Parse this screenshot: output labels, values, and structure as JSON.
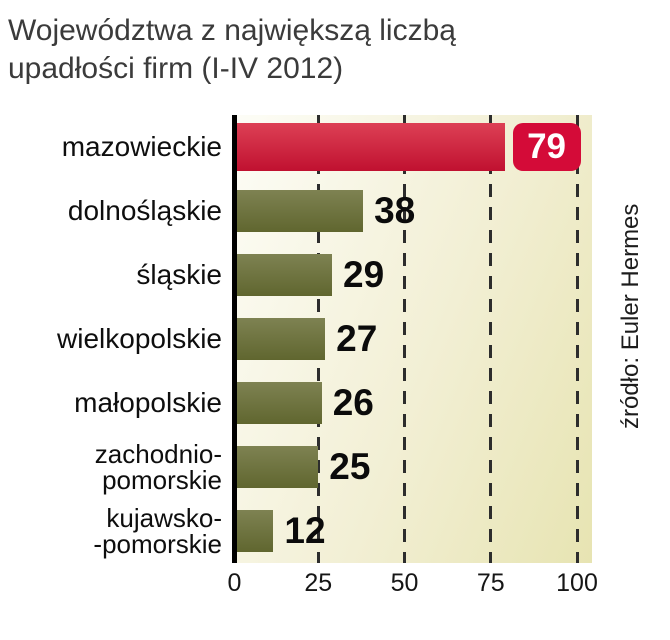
{
  "title": "Województwa z największą liczbą\nupadłości firm (I-IV 2012)",
  "source": "źródło: Euler Hermes",
  "chart_data": {
    "type": "bar",
    "orientation": "horizontal",
    "title": "Województwa z największą liczbą upadłości firm (I-IV 2012)",
    "categories": [
      "mazowieckie",
      "dolnośląskie",
      "śląskie",
      "wielkopolskie",
      "małopolskie",
      "zachodnio-\npomorskie",
      "kujawsko-\n-pomorskie"
    ],
    "values": [
      79,
      38,
      29,
      27,
      26,
      25,
      12
    ],
    "x_ticks": [
      0,
      25,
      50,
      75,
      100
    ],
    "xlim": [
      0,
      104
    ],
    "highlight_index": 0,
    "legend": "none",
    "grid": "dashed-vertical",
    "colors": {
      "highlight_bar": "#cf1f3a",
      "bar": "#6e7342",
      "badge": "#d40b38",
      "badge_text": "#ffffff",
      "value_text": "#0b0b0b",
      "plot_bg_from": "#fdfdf7",
      "plot_bg_to": "#e7e4b2",
      "gridline": "#2d2d2d",
      "axis": "#000000"
    }
  }
}
